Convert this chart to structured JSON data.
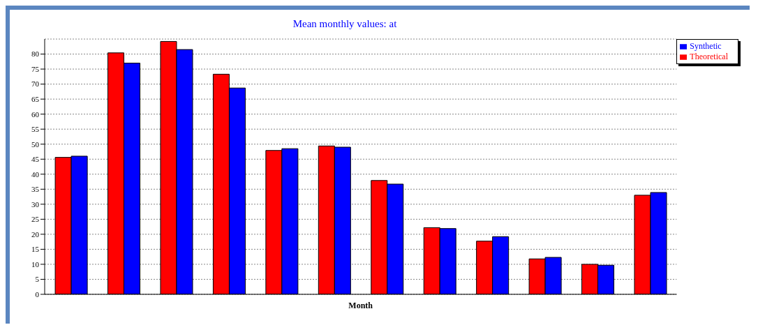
{
  "chart_data": {
    "type": "bar",
    "title": "Mean monthly values:  at",
    "xlabel": "Month",
    "categories": [
      null,
      null,
      null,
      null,
      null,
      null,
      null,
      null,
      null,
      null,
      null,
      null
    ],
    "series": [
      {
        "name": "Theoretical",
        "color": "#ff0000",
        "values": [
          45.6,
          80.4,
          84.2,
          73.3,
          47.9,
          49.4,
          37.9,
          22.2,
          17.7,
          11.8,
          10.0,
          33.0
        ]
      },
      {
        "name": "Synthetic",
        "color": "#0000ff",
        "values": [
          46.0,
          77.0,
          81.5,
          68.7,
          48.5,
          49.0,
          36.7,
          21.9,
          19.2,
          12.3,
          9.7,
          33.9
        ]
      }
    ],
    "ylim": [
      0,
      85
    ],
    "yticks": [
      0,
      5,
      10,
      15,
      20,
      25,
      30,
      35,
      40,
      45,
      50,
      55,
      60,
      65,
      70,
      75,
      80
    ],
    "grid": "y",
    "legend": "top right"
  }
}
